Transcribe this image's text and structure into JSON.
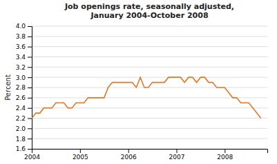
{
  "chart_data": {
    "type": "line",
    "title": "Job openings rate, seasonally adjusted,\nJanuary 2004-October 2008",
    "ylabel": "Percent",
    "color": "#E87722",
    "x": [
      2004,
      2004.0833333333333,
      2004.1666666666667,
      2004.25,
      2004.3333333333333,
      2004.4166666666667,
      2004.5,
      2004.5833333333333,
      2004.6666666666667,
      2004.75,
      2004.8333333333333,
      2004.9166666666667,
      2005,
      2005.0833333333333,
      2005.1666666666667,
      2005.25,
      2005.3333333333333,
      2005.4166666666667,
      2005.5,
      2005.5833333333333,
      2005.6666666666667,
      2005.75,
      2005.8333333333333,
      2005.9166666666667,
      2006,
      2006.0833333333333,
      2006.1666666666667,
      2006.25,
      2006.3333333333333,
      2006.4166666666667,
      2006.5,
      2006.5833333333333,
      2006.6666666666667,
      2006.75,
      2006.8333333333333,
      2006.9166666666667,
      2007,
      2007.0833333333333,
      2007.1666666666667,
      2007.25,
      2007.3333333333333,
      2007.4166666666667,
      2007.5,
      2007.5833333333333,
      2007.6666666666667,
      2007.75,
      2007.8333333333333,
      2007.9166666666667,
      2008,
      2008.0833333333333,
      2008.1666666666667,
      2008.25,
      2008.3333333333333,
      2008.4166666666667,
      2008.5,
      2008.5833333333333,
      2008.6666666666667,
      2008.75
    ],
    "values": [
      2.2,
      2.3,
      2.3,
      2.4,
      2.4,
      2.4,
      2.5,
      2.5,
      2.5,
      2.4,
      2.4,
      2.5,
      2.5,
      2.5,
      2.6,
      2.6,
      2.6,
      2.6,
      2.6,
      2.8,
      2.9,
      2.9,
      2.9,
      2.9,
      2.9,
      2.9,
      2.8,
      3.0,
      2.8,
      2.8,
      2.9,
      2.9,
      2.9,
      2.9,
      3.0,
      3.0,
      3.0,
      3.0,
      2.9,
      3.0,
      3.0,
      2.9,
      3.0,
      3.0,
      2.9,
      2.9,
      2.8,
      2.8,
      2.8,
      2.7,
      2.6,
      2.6,
      2.5,
      2.5,
      2.5,
      2.4,
      2.3,
      2.2
    ],
    "xlim": [
      2004,
      2008.8833333333332
    ],
    "xticks": [
      2004,
      2005,
      2006,
      2007,
      2008
    ],
    "ylim": [
      1.6,
      4.0
    ],
    "yticks": [
      1.6,
      1.8,
      {
        "value": 2.0,
        "label": "2.0"
      },
      2.2,
      2.4,
      2.6,
      2.8,
      {
        "value": 3.0,
        "label": "3.0"
      },
      3.2,
      3.4,
      3.6,
      3.8,
      {
        "value": 4.0,
        "label": "4.0"
      }
    ],
    "grid": true
  }
}
